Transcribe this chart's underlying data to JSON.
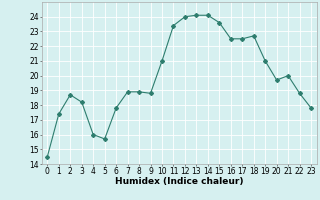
{
  "x": [
    0,
    1,
    2,
    3,
    4,
    5,
    6,
    7,
    8,
    9,
    10,
    11,
    12,
    13,
    14,
    15,
    16,
    17,
    18,
    19,
    20,
    21,
    22,
    23
  ],
  "y": [
    14.5,
    17.4,
    18.7,
    18.2,
    16.0,
    15.7,
    17.8,
    18.9,
    18.9,
    18.8,
    21.0,
    23.4,
    24.0,
    24.1,
    24.1,
    23.6,
    22.5,
    22.5,
    22.7,
    21.0,
    19.7,
    20.0,
    18.8,
    17.8
  ],
  "line_color": "#2e7d6e",
  "marker": "D",
  "markersize": 2,
  "bg_color": "#d6f0f0",
  "grid_color": "#ffffff",
  "xlabel": "Humidex (Indice chaleur)",
  "ylim": [
    14,
    25
  ],
  "xlim": [
    -0.5,
    23.5
  ],
  "yticks": [
    14,
    15,
    16,
    17,
    18,
    19,
    20,
    21,
    22,
    23,
    24
  ],
  "xticks": [
    0,
    1,
    2,
    3,
    4,
    5,
    6,
    7,
    8,
    9,
    10,
    11,
    12,
    13,
    14,
    15,
    16,
    17,
    18,
    19,
    20,
    21,
    22,
    23
  ],
  "tick_fontsize": 5.5,
  "xlabel_fontsize": 6.5
}
